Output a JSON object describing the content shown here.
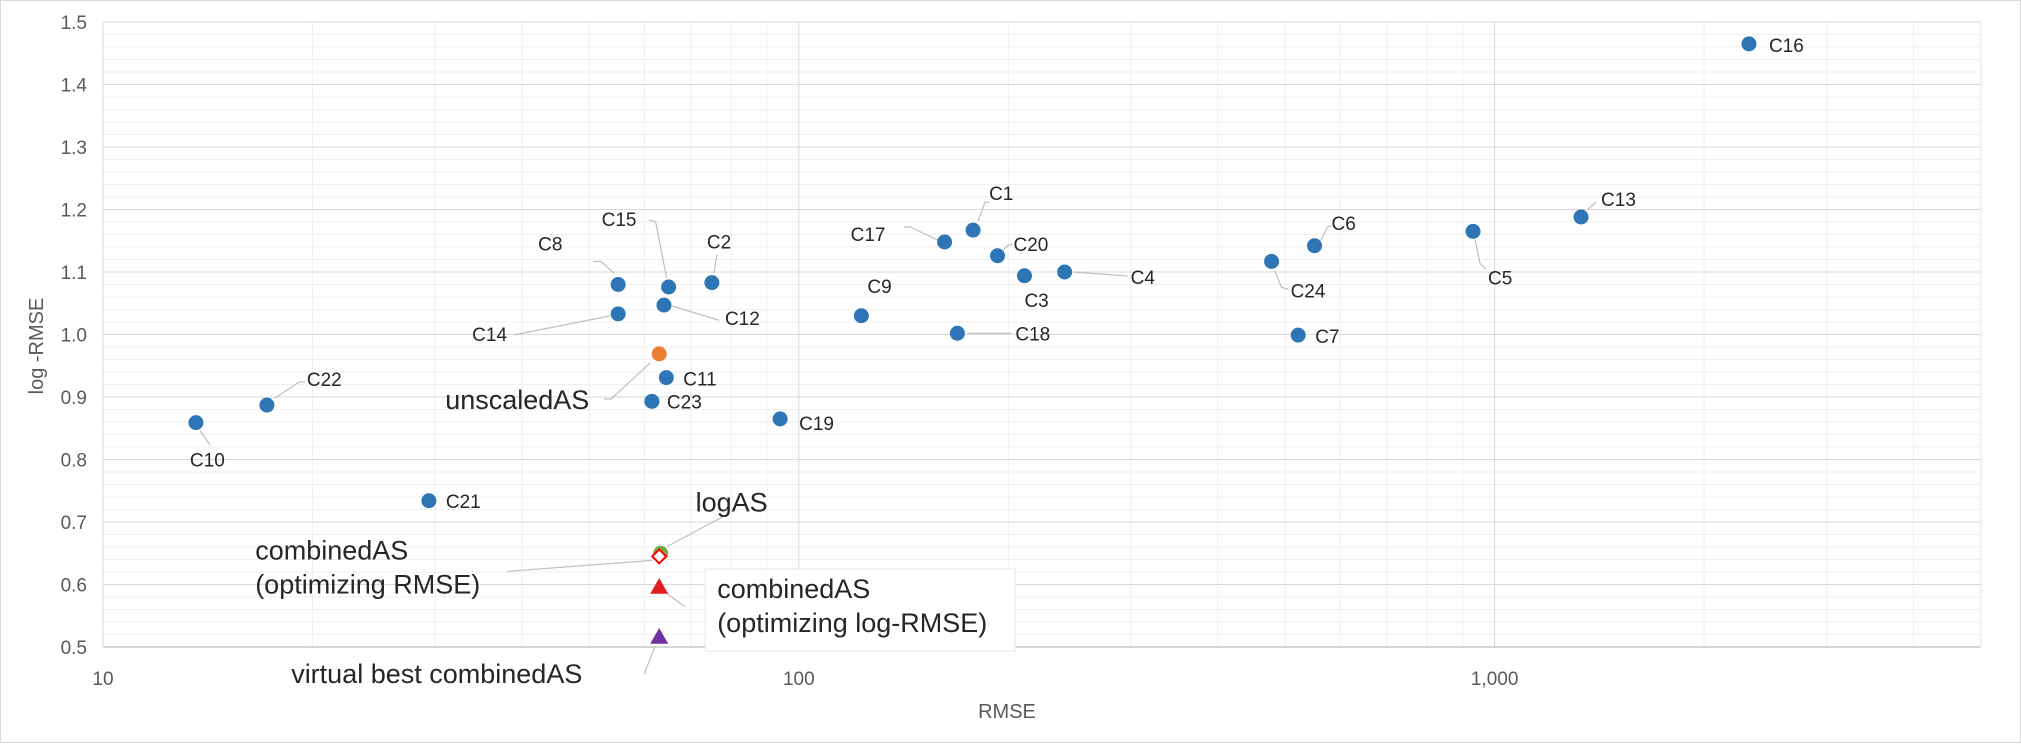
{
  "chart_data": {
    "type": "scatter",
    "title": "",
    "xlabel": "RMSE",
    "ylabel": "log -RMSE",
    "xscale": "log",
    "xlim": [
      10,
      5000
    ],
    "ylim": [
      0.5,
      1.5
    ],
    "x_ticks": [
      10,
      100,
      1000
    ],
    "x_tick_labels": [
      "10",
      "100",
      "1,000"
    ],
    "y_ticks": [
      0.5,
      0.6,
      0.7,
      0.8,
      0.9,
      1.0,
      1.1,
      1.2,
      1.3,
      1.4,
      1.5
    ],
    "y_tick_labels": [
      "0.5",
      "0.6",
      "0.7",
      "0.8",
      "0.9",
      "1.0",
      "1.1",
      "1.2",
      "1.3",
      "1.4",
      "1.5"
    ],
    "grid": true,
    "legend": "none",
    "colors": {
      "cases": "#2e75b6",
      "unscaledAS": "#ed7d31",
      "logAS": "#70ad47",
      "combinedAS_rmse": "#ff0000",
      "combinedAS_logrmse": "#e02020",
      "virtual_best": "#7030a0"
    },
    "points": [
      {
        "label": "C1",
        "x": 178,
        "y": 1.167,
        "marker": "circle",
        "color": "#2e75b6"
      },
      {
        "label": "C2",
        "x": 75,
        "y": 1.083,
        "marker": "circle",
        "color": "#2e75b6"
      },
      {
        "label": "C3",
        "x": 211,
        "y": 1.094,
        "marker": "circle",
        "color": "#2e75b6"
      },
      {
        "label": "C4",
        "x": 241,
        "y": 1.1,
        "marker": "circle",
        "color": "#2e75b6"
      },
      {
        "label": "C5",
        "x": 931,
        "y": 1.165,
        "marker": "circle",
        "color": "#2e75b6"
      },
      {
        "label": "C6",
        "x": 551,
        "y": 1.142,
        "marker": "circle",
        "color": "#2e75b6"
      },
      {
        "label": "C7",
        "x": 522,
        "y": 0.999,
        "marker": "circle",
        "color": "#2e75b6"
      },
      {
        "label": "C8",
        "x": 55,
        "y": 1.08,
        "marker": "circle",
        "color": "#2e75b6"
      },
      {
        "label": "C9",
        "x": 123,
        "y": 1.03,
        "marker": "circle",
        "color": "#2e75b6"
      },
      {
        "label": "C10",
        "x": 13.6,
        "y": 0.859,
        "marker": "circle",
        "color": "#2e75b6"
      },
      {
        "label": "C11",
        "x": 64.5,
        "y": 0.931,
        "marker": "circle",
        "color": "#2e75b6"
      },
      {
        "label": "C12",
        "x": 64,
        "y": 1.047,
        "marker": "circle",
        "color": "#2e75b6"
      },
      {
        "label": "C13",
        "x": 1331,
        "y": 1.188,
        "marker": "circle",
        "color": "#2e75b6"
      },
      {
        "label": "C14",
        "x": 55,
        "y": 1.033,
        "marker": "circle",
        "color": "#2e75b6"
      },
      {
        "label": "C15",
        "x": 65,
        "y": 1.076,
        "marker": "circle",
        "color": "#2e75b6"
      },
      {
        "label": "C16",
        "x": 2320,
        "y": 1.465,
        "marker": "circle",
        "color": "#2e75b6"
      },
      {
        "label": "C17",
        "x": 162,
        "y": 1.148,
        "marker": "circle",
        "color": "#2e75b6"
      },
      {
        "label": "C18",
        "x": 169,
        "y": 1.002,
        "marker": "circle",
        "color": "#2e75b6"
      },
      {
        "label": "C19",
        "x": 94,
        "y": 0.865,
        "marker": "circle",
        "color": "#2e75b6"
      },
      {
        "label": "C20",
        "x": 193,
        "y": 1.126,
        "marker": "circle",
        "color": "#2e75b6"
      },
      {
        "label": "C21",
        "x": 29.4,
        "y": 0.734,
        "marker": "circle",
        "color": "#2e75b6"
      },
      {
        "label": "C22",
        "x": 17.2,
        "y": 0.887,
        "marker": "circle",
        "color": "#2e75b6"
      },
      {
        "label": "C23",
        "x": 61.5,
        "y": 0.893,
        "marker": "circle",
        "color": "#2e75b6"
      },
      {
        "label": "C24",
        "x": 478,
        "y": 1.117,
        "marker": "circle",
        "color": "#2e75b6"
      },
      {
        "label": "unscaledAS",
        "x": 63,
        "y": 0.969,
        "marker": "circle",
        "color": "#ed7d31"
      },
      {
        "label": "logAS",
        "x": 63.3,
        "y": 0.65,
        "marker": "circle",
        "color": "#70ad47"
      },
      {
        "label": "combinedAS\n(optimizing RMSE)",
        "x": 63,
        "y": 0.645,
        "marker": "diamond",
        "color": "#ff0000"
      },
      {
        "label": "combinedAS\n(optimizing log-RMSE)",
        "x": 63,
        "y": 0.596,
        "marker": "triangle",
        "color": "#e02020"
      },
      {
        "label": "virtual best combinedAS",
        "x": 63,
        "y": 0.516,
        "marker": "triangle",
        "color": "#7030a0"
      }
    ]
  }
}
